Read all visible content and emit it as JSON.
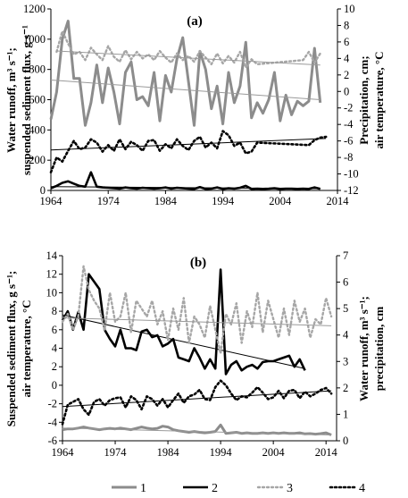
{
  "chart_data": [
    {
      "type": "line",
      "panel_label": "(a)",
      "ylabel_left": [
        "Water runoff, m³ s⁻¹;",
        "suspended sediment flux, g s⁻¹"
      ],
      "ylabel_right": [
        "Precipitation, cm;",
        "air temperature, °C"
      ],
      "xlim": [
        1964,
        2014
      ],
      "x_ticks": [
        1964,
        1974,
        1984,
        1994,
        2004,
        2014
      ],
      "ylim_left": [
        0,
        1200
      ],
      "y_ticks_left": [
        0,
        200,
        400,
        600,
        800,
        1000,
        1200
      ],
      "ylim_right": [
        -12,
        10
      ],
      "y_ticks_right": [
        -12,
        -10,
        -8,
        -6,
        -4,
        -2,
        0,
        2,
        4,
        6,
        8,
        10
      ],
      "series": [
        {
          "key": "1",
          "axis": "left",
          "style": "gray-solid",
          "x": [
            1964,
            1965,
            1966,
            1967,
            1968,
            1969,
            1970,
            1971,
            1972,
            1973,
            1974,
            1975,
            1976,
            1977,
            1978,
            1979,
            1980,
            1981,
            1982,
            1983,
            1984,
            1985,
            1986,
            1987,
            1988,
            1989,
            1990,
            1991,
            1992,
            1993,
            1994,
            1995,
            1996,
            1997,
            1998,
            1999,
            2000,
            2001,
            2002,
            2003,
            2004,
            2005,
            2006,
            2007,
            2008,
            2009,
            2010,
            2011
          ],
          "y": [
            470,
            650,
            1000,
            1120,
            740,
            740,
            430,
            580,
            830,
            580,
            810,
            650,
            440,
            780,
            850,
            600,
            620,
            560,
            780,
            460,
            760,
            650,
            870,
            1010,
            720,
            430,
            920,
            800,
            540,
            690,
            440,
            780,
            580,
            690,
            980,
            480,
            580,
            510,
            600,
            780,
            460,
            630,
            500,
            590,
            560,
            590,
            940,
            580
          ],
          "trend": [
            730,
            600
          ]
        },
        {
          "key": "2",
          "axis": "left",
          "style": "black-solid",
          "x": [
            1964,
            1965,
            1966,
            1967,
            1968,
            1969,
            1970,
            1971,
            1972,
            1973,
            1974,
            1975,
            1976,
            1977,
            1978,
            1979,
            1980,
            1981,
            1982,
            1983,
            1984,
            1985,
            1986,
            1987,
            1988,
            1989,
            1990,
            1991,
            1992,
            1993,
            1994,
            1995,
            1996,
            1997,
            1998,
            1999,
            2000,
            2001,
            2002,
            2003,
            2004,
            2005,
            2006,
            2007,
            2008,
            2009,
            2010,
            2011
          ],
          "y": [
            15,
            30,
            50,
            60,
            45,
            30,
            25,
            120,
            25,
            20,
            18,
            15,
            12,
            20,
            15,
            12,
            18,
            15,
            12,
            15,
            20,
            12,
            18,
            15,
            12,
            10,
            22,
            10,
            12,
            20,
            10,
            15,
            12,
            18,
            30,
            10,
            12,
            10,
            12,
            15,
            10,
            12,
            12,
            10,
            12,
            10,
            20,
            10
          ],
          "trend": [
            25,
            12
          ]
        },
        {
          "key": "3",
          "axis": "right",
          "style": "gray-dotted",
          "x": [
            1965,
            1966,
            1967,
            1968,
            1969,
            1970,
            1971,
            1972,
            1973,
            1974,
            1975,
            1976,
            1977,
            1978,
            1979,
            1980,
            1981,
            1982,
            1983,
            1984,
            1985,
            1986,
            1987,
            1988,
            1989,
            1990,
            1991,
            1992,
            1993,
            1994,
            1995,
            1996,
            1997,
            1998,
            1999,
            2000,
            2008,
            2009,
            2010,
            2011
          ],
          "y": [
            4.8,
            7.3,
            5.8,
            4.5,
            4.8,
            3.8,
            5.3,
            4.5,
            3.8,
            5.5,
            4.2,
            3.6,
            5.0,
            3.9,
            4.8,
            4.0,
            4.5,
            3.8,
            4.9,
            4.1,
            3.5,
            4.6,
            3.8,
            4.3,
            3.6,
            4.9,
            4.1,
            3.3,
            4.6,
            3.4,
            4.3,
            3.5,
            4.8,
            2.9,
            3.9,
            3.3,
            3.8,
            4.8,
            3.5,
            4.6
          ],
          "trend": [
            4.9,
            3.2
          ]
        },
        {
          "key": "4",
          "axis": "right",
          "style": "black-dotted",
          "x": [
            1964,
            1965,
            1966,
            1967,
            1968,
            1969,
            1970,
            1971,
            1972,
            1973,
            1974,
            1975,
            1976,
            1977,
            1978,
            1979,
            1980,
            1981,
            1982,
            1983,
            1984,
            1985,
            1986,
            1987,
            1988,
            1989,
            1990,
            1991,
            1992,
            1993,
            1994,
            1995,
            1996,
            1997,
            1998,
            1999,
            2000,
            2009,
            2010,
            2011,
            2012
          ],
          "y": [
            -9.8,
            -8.0,
            -8.5,
            -7.2,
            -6.0,
            -7.0,
            -6.8,
            -5.8,
            -6.2,
            -7.3,
            -6.5,
            -7.2,
            -5.8,
            -7.0,
            -6.1,
            -6.5,
            -7.2,
            -6.0,
            -5.9,
            -7.2,
            -6.4,
            -6.9,
            -5.8,
            -6.6,
            -7.1,
            -6.0,
            -5.5,
            -6.8,
            -6.2,
            -6.9,
            -4.8,
            -5.3,
            -6.6,
            -6.2,
            -7.5,
            -7.3,
            -6.2,
            -6.5,
            -5.9,
            -5.6,
            -5.5
          ],
          "trend": [
            -7.1,
            -5.7
          ]
        }
      ]
    },
    {
      "type": "line",
      "panel_label": "(b)",
      "ylabel_left": [
        "Suspended sediment flux, g s⁻¹;",
        "air temperature, °C"
      ],
      "ylabel_right": [
        "Water runoff, m³ s⁻¹;",
        "precipitation, cm"
      ],
      "xlim": [
        1964,
        2016
      ],
      "x_ticks": [
        1964,
        1974,
        1984,
        1994,
        2004,
        2014
      ],
      "ylim_left": [
        -6,
        14
      ],
      "y_ticks_left": [
        -6,
        -4,
        -2,
        0,
        2,
        4,
        6,
        8,
        10,
        12,
        14
      ],
      "ylim_right": [
        0,
        7
      ],
      "y_ticks_right": [
        0,
        1,
        2,
        3,
        4,
        5,
        6,
        7
      ],
      "series": [
        {
          "key": "1",
          "axis": "right",
          "style": "gray-solid",
          "x": [
            1964,
            1965,
            1966,
            1967,
            1968,
            1969,
            1970,
            1971,
            1972,
            1973,
            1974,
            1975,
            1976,
            1977,
            1978,
            1979,
            1980,
            1981,
            1982,
            1983,
            1984,
            1985,
            1986,
            1987,
            1988,
            1989,
            1990,
            1991,
            1992,
            1993,
            1994,
            1995,
            1996,
            1997,
            1998,
            1999,
            2000,
            2001,
            2002,
            2003,
            2004,
            2005,
            2006,
            2007,
            2008,
            2009,
            2010,
            2011,
            2012,
            2013,
            2014,
            2015
          ],
          "y": [
            0.42,
            0.45,
            0.45,
            0.48,
            0.52,
            0.48,
            0.45,
            0.42,
            0.45,
            0.47,
            0.45,
            0.48,
            0.45,
            0.42,
            0.47,
            0.52,
            0.48,
            0.45,
            0.47,
            0.55,
            0.52,
            0.42,
            0.38,
            0.35,
            0.32,
            0.35,
            0.32,
            0.3,
            0.32,
            0.35,
            0.6,
            0.28,
            0.3,
            0.32,
            0.28,
            0.3,
            0.28,
            0.28,
            0.3,
            0.28,
            0.3,
            0.28,
            0.3,
            0.28,
            0.28,
            0.3,
            0.26,
            0.27,
            0.25,
            0.27,
            0.3,
            0.22
          ],
          "trend": [
            0.48,
            0.22
          ]
        },
        {
          "key": "2",
          "axis": "left",
          "style": "black-solid",
          "x": [
            1964,
            1965,
            1966,
            1967,
            1968,
            1969,
            1970,
            1971,
            1972,
            1973,
            1974,
            1975,
            1976,
            1977,
            1978,
            1979,
            1980,
            1981,
            1982,
            1983,
            1984,
            1985,
            1986,
            1987,
            1988,
            1989,
            1990,
            1991,
            1992,
            1993,
            1994,
            1995,
            1996,
            1997,
            1998,
            1999,
            2000,
            2001,
            2002,
            2003,
            2004,
            2005,
            2006,
            2007,
            2008,
            2009,
            2010
          ],
          "y": [
            7.0,
            8.0,
            6.0,
            7.9,
            6.0,
            12.0,
            11.2,
            10.4,
            6.0,
            5.0,
            4.2,
            6.0,
            4.0,
            4.0,
            3.8,
            5.8,
            6.0,
            5.2,
            5.4,
            4.2,
            4.5,
            5.0,
            3.0,
            2.8,
            2.6,
            4.0,
            3.0,
            1.8,
            2.8,
            1.8,
            12.5,
            1.2,
            2.2,
            2.6,
            1.6,
            2.0,
            2.2,
            1.8,
            2.5,
            2.6,
            2.6,
            2.8,
            3.0,
            3.2,
            2.0,
            2.8,
            1.6
          ],
          "trend": [
            7.6,
            1.8
          ]
        },
        {
          "key": "3",
          "axis": "right",
          "style": "gray-dotted",
          "x": [
            1964,
            1965,
            1966,
            1967,
            1968,
            1969,
            1970,
            1971,
            1972,
            1973,
            1974,
            1975,
            1976,
            1977,
            1978,
            1979,
            1980,
            1981,
            1982,
            1983,
            1984,
            1985,
            1986,
            1987,
            1988,
            1989,
            1990,
            1991,
            1992,
            1993,
            1994,
            1995,
            1996,
            1997,
            1998,
            1999,
            2000,
            2001,
            2002,
            2003,
            2004,
            2005,
            2006,
            2007,
            2008,
            2009,
            2010,
            2011,
            2012,
            2013,
            2014,
            2015
          ],
          "y": [
            4.5,
            4.8,
            4.2,
            4.7,
            6.6,
            5.7,
            5.3,
            5.0,
            4.2,
            5.6,
            4.5,
            4.7,
            5.6,
            4.1,
            5.3,
            5.0,
            4.7,
            5.3,
            4.4,
            4.9,
            3.8,
            5.0,
            4.2,
            5.4,
            3.7,
            4.7,
            4.4,
            3.9,
            5.1,
            4.2,
            3.3,
            4.8,
            4.4,
            5.2,
            3.7,
            4.9,
            4.3,
            5.6,
            4.1,
            5.3,
            4.6,
            3.9,
            5.0,
            4.0,
            5.3,
            4.5,
            5.0,
            3.9,
            4.6,
            4.4,
            5.4,
            4.7
          ],
          "trend": [
            4.65,
            4.35
          ]
        },
        {
          "key": "4",
          "axis": "left",
          "style": "black-dotted",
          "x": [
            1964,
            1965,
            1966,
            1967,
            1968,
            1969,
            1970,
            1971,
            1972,
            1973,
            1974,
            1975,
            1976,
            1977,
            1978,
            1979,
            1980,
            1981,
            1982,
            1983,
            1984,
            1985,
            1986,
            1987,
            1988,
            1989,
            1990,
            1991,
            1992,
            1993,
            1994,
            1995,
            1996,
            1997,
            1998,
            1999,
            2000,
            2001,
            2002,
            2003,
            2004,
            2005,
            2006,
            2007,
            2008,
            2009,
            2010,
            2011,
            2012,
            2013,
            2014,
            2015
          ],
          "y": [
            -4.2,
            -2.1,
            -1.8,
            -1.5,
            -2.6,
            -3.2,
            -1.8,
            -1.5,
            -2.2,
            -1.6,
            -1.4,
            -1.3,
            -2.4,
            -1.2,
            -1.6,
            -2.6,
            -1.2,
            -1.5,
            -2.2,
            -1.5,
            -2.4,
            -1.6,
            -0.9,
            -1.9,
            -1.2,
            -1.0,
            -0.5,
            -1.5,
            -1.6,
            -0.2,
            0.5,
            0.0,
            -0.9,
            -1.6,
            -1.2,
            -1.3,
            -0.8,
            -0.2,
            -0.8,
            -1.5,
            -1.3,
            -0.6,
            -1.4,
            -0.6,
            -0.5,
            -1.4,
            -0.7,
            -1.2,
            -0.9,
            -0.5,
            -0.3,
            -0.9
          ],
          "trend": [
            -2.3,
            -0.6
          ]
        }
      ]
    }
  ],
  "legend": {
    "placement": "bottom",
    "entries": [
      {
        "key": "1",
        "style": "gray-solid"
      },
      {
        "key": "2",
        "style": "black-solid"
      },
      {
        "key": "3",
        "style": "gray-dotted"
      },
      {
        "key": "4",
        "style": "black-dotted"
      }
    ]
  },
  "styles": {
    "gray-solid": {
      "color": "#8c8c8c",
      "width": 3,
      "dash": ""
    },
    "black-solid": {
      "color": "#000000",
      "width": 2.6,
      "dash": ""
    },
    "gray-dotted": {
      "color": "#a6a6a6",
      "width": 2.4,
      "dash": "2 3"
    },
    "black-dotted": {
      "color": "#000000",
      "width": 2.6,
      "dash": "2 3"
    }
  }
}
